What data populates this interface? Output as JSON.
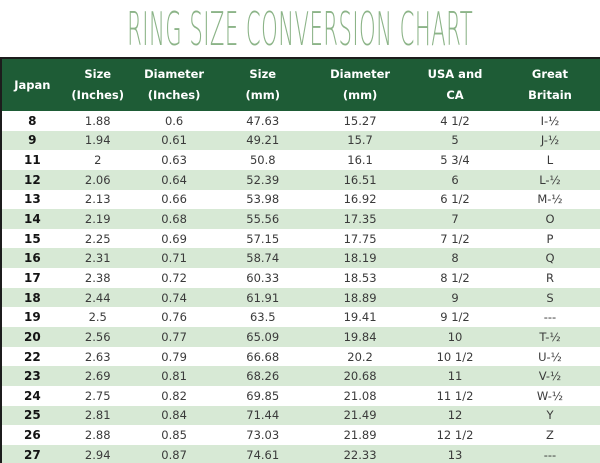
{
  "title": "RING SIZE CONVERSION CHART",
  "colors": {
    "header_bg": "#1e5c36",
    "row_alt_bg": "#d7e9d5",
    "title_green": "#8cb488",
    "border_dark": "#1c1c1c",
    "cell_text": "#3a3a3a"
  },
  "chart_data": {
    "type": "table",
    "title": "RING SIZE CONVERSION CHART",
    "columns": [
      {
        "line1": "Japan",
        "line2": ""
      },
      {
        "line1": "Size",
        "line2": "(Inches)"
      },
      {
        "line1": "Diameter",
        "line2": "(Inches)"
      },
      {
        "line1": "Size",
        "line2": "(mm)"
      },
      {
        "line1": "Diameter",
        "line2": "(mm)"
      },
      {
        "line1": "USA and",
        "line2": "CA"
      },
      {
        "line1": "Great",
        "line2": "Britain"
      }
    ],
    "rows": [
      [
        "8",
        "1.88",
        "0.6",
        "47.63",
        "15.27",
        "4 1/2",
        "I-½"
      ],
      [
        "9",
        "1.94",
        "0.61",
        "49.21",
        "15.7",
        "5",
        "J-½"
      ],
      [
        "11",
        "2",
        "0.63",
        "50.8",
        "16.1",
        "5 3/4",
        "L"
      ],
      [
        "12",
        "2.06",
        "0.64",
        "52.39",
        "16.51",
        "6",
        "L-½"
      ],
      [
        "13",
        "2.13",
        "0.66",
        "53.98",
        "16.92",
        "6 1/2",
        "M-½"
      ],
      [
        "14",
        "2.19",
        "0.68",
        "55.56",
        "17.35",
        "7",
        "O"
      ],
      [
        "15",
        "2.25",
        "0.69",
        "57.15",
        "17.75",
        "7 1/2",
        "P"
      ],
      [
        "16",
        "2.31",
        "0.71",
        "58.74",
        "18.19",
        "8",
        "Q"
      ],
      [
        "17",
        "2.38",
        "0.72",
        "60.33",
        "18.53",
        "8 1/2",
        "R"
      ],
      [
        "18",
        "2.44",
        "0.74",
        "61.91",
        "18.89",
        "9",
        "S"
      ],
      [
        "19",
        "2.5",
        "0.76",
        "63.5",
        "19.41",
        "9 1/2",
        "---"
      ],
      [
        "20",
        "2.56",
        "0.77",
        "65.09",
        "19.84",
        "10",
        "T-½"
      ],
      [
        "22",
        "2.63",
        "0.79",
        "66.68",
        "20.2",
        "10 1/2",
        "U-½"
      ],
      [
        "23",
        "2.69",
        "0.81",
        "68.26",
        "20.68",
        "11",
        "V-½"
      ],
      [
        "24",
        "2.75",
        "0.82",
        "69.85",
        "21.08",
        "11 1/2",
        "W-½"
      ],
      [
        "25",
        "2.81",
        "0.84",
        "71.44",
        "21.49",
        "12",
        "Y"
      ],
      [
        "26",
        "2.88",
        "0.85",
        "73.03",
        "21.89",
        "12 1/2",
        "Z"
      ],
      [
        "27",
        "2.94",
        "0.87",
        "74.61",
        "22.33",
        "13",
        "---"
      ]
    ]
  }
}
